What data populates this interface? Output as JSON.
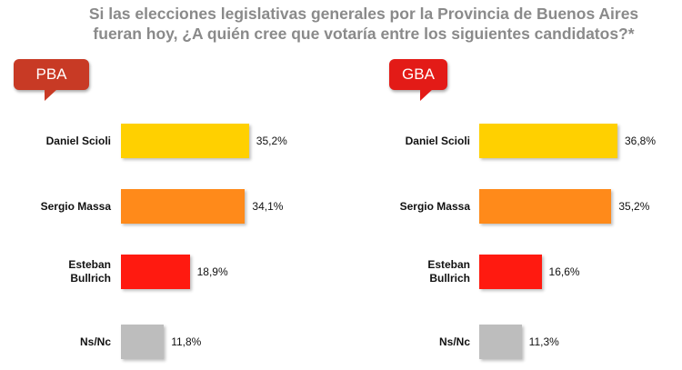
{
  "title": {
    "line1": "Si las elecciones legislativas generales por la Provincia de Buenos Aires",
    "line2": "fueran hoy, ¿A quién cree que votaría entre los siguientes candidatos?*"
  },
  "colors": {
    "scioli": "#ffd000",
    "massa": "#ff8a1a",
    "bullrich": "#ff1a10",
    "nsnc": "#bdbdbd",
    "badge_pba": "#c83a25",
    "badge_gba": "#e31b17"
  },
  "chart_data": [
    {
      "type": "bar",
      "orientation": "horizontal",
      "panel_label": "PBA",
      "categories": [
        "Daniel Scioli",
        "Sergio Massa",
        "Esteban\nBullrich",
        "Ns/Nc"
      ],
      "values": [
        35.2,
        34.1,
        18.9,
        11.8
      ],
      "value_labels": [
        "35,2%",
        "34,1%",
        "18,9%",
        "11,8%"
      ],
      "xlim": [
        0,
        40
      ],
      "grid": false
    },
    {
      "type": "bar",
      "orientation": "horizontal",
      "panel_label": "GBA",
      "categories": [
        "Daniel Scioli",
        "Sergio Massa",
        "Esteban\nBullrich",
        "Ns/Nc"
      ],
      "values": [
        36.8,
        35.2,
        16.6,
        11.3
      ],
      "value_labels": [
        "36,8%",
        "35,2%",
        "16,6%",
        "11,3%"
      ],
      "xlim": [
        0,
        40
      ],
      "grid": false
    }
  ]
}
